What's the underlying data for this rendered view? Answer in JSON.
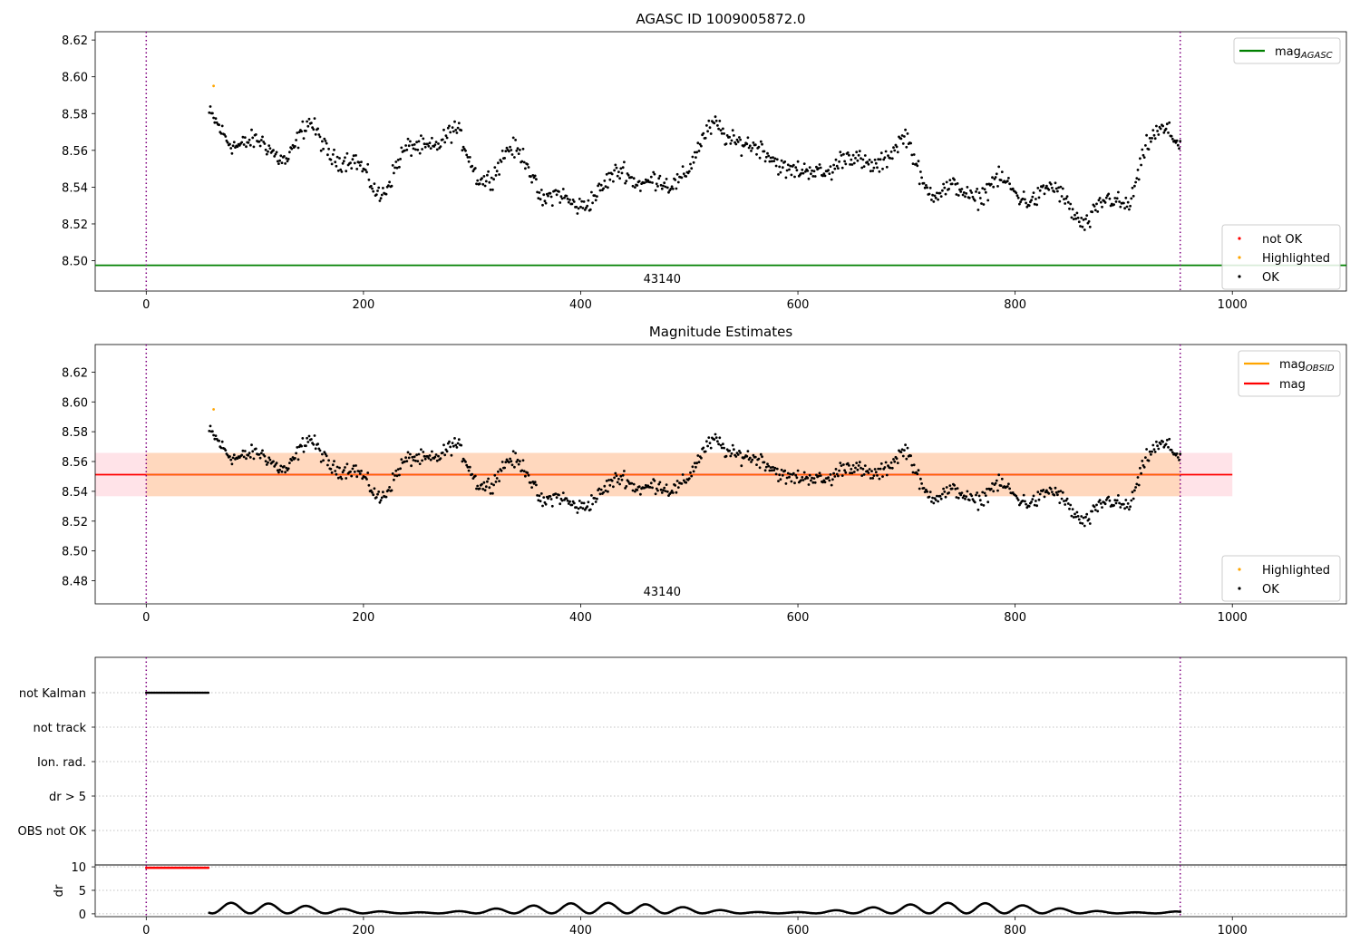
{
  "chart_data": [
    {
      "type": "scatter",
      "title": "AGASC ID 1009005872.0",
      "xlim": [
        -47,
        1105
      ],
      "ylim": [
        8.4835,
        8.6245
      ],
      "xticks": [
        0,
        200,
        400,
        600,
        800,
        1000
      ],
      "yticks": [
        "8.50",
        "8.52",
        "8.54",
        "8.56",
        "8.58",
        "8.60",
        "8.62"
      ],
      "vlines": [
        0,
        952
      ],
      "annotation": {
        "text": "43140",
        "x": 475
      },
      "hline": {
        "name": "mag_AGASC",
        "y": 8.4975,
        "color": "#008000"
      },
      "legend_lines": [
        {
          "label": "mag",
          "sub": "AGASC",
          "color": "#008000"
        }
      ],
      "legend_points": [
        {
          "label": "not OK",
          "color": "#ff0000"
        },
        {
          "label": "Highlighted",
          "color": "#ffa500"
        },
        {
          "label": "OK",
          "color": "#000000"
        }
      ],
      "series": [
        {
          "name": "OK",
          "color": "#000000",
          "x_range": [
            58,
            952
          ],
          "y_profile": [
            [
              58,
              8.576
            ],
            [
              75,
              8.568
            ],
            [
              100,
              8.562
            ],
            [
              130,
              8.558
            ],
            [
              150,
              8.572
            ],
            [
              170,
              8.56
            ],
            [
              190,
              8.552
            ],
            [
              215,
              8.538
            ],
            [
              235,
              8.555
            ],
            [
              260,
              8.565
            ],
            [
              285,
              8.568
            ],
            [
              305,
              8.548
            ],
            [
              320,
              8.547
            ],
            [
              335,
              8.558
            ],
            [
              350,
              8.558
            ],
            [
              365,
              8.533
            ],
            [
              390,
              8.532
            ],
            [
              420,
              8.536
            ],
            [
              440,
              8.552
            ],
            [
              460,
              8.541
            ],
            [
              480,
              8.54
            ],
            [
              500,
              8.553
            ],
            [
              525,
              8.573
            ],
            [
              545,
              8.567
            ],
            [
              560,
              8.558
            ],
            [
              580,
              8.557
            ],
            [
              605,
              8.545
            ],
            [
              620,
              8.548
            ],
            [
              640,
              8.557
            ],
            [
              660,
              8.55
            ],
            [
              680,
              8.558
            ],
            [
              700,
              8.564
            ],
            [
              715,
              8.543
            ],
            [
              740,
              8.537
            ],
            [
              760,
              8.535
            ],
            [
              780,
              8.544
            ],
            [
              800,
              8.535
            ],
            [
              830,
              8.538
            ],
            [
              850,
              8.53
            ],
            [
              865,
              8.522
            ],
            [
              885,
              8.53
            ],
            [
              905,
              8.534
            ],
            [
              920,
              8.56
            ],
            [
              940,
              8.571
            ],
            [
              952,
              8.568
            ]
          ],
          "noise": 0.0075
        },
        {
          "name": "Highlighted",
          "color": "#ffa500",
          "points": [
            [
              62,
              8.595
            ]
          ]
        }
      ]
    },
    {
      "type": "scatter",
      "title": "Magnitude Estimates",
      "xlim": [
        -47,
        1105
      ],
      "ylim": [
        8.4645,
        8.6385
      ],
      "xticks": [
        0,
        200,
        400,
        600,
        800,
        1000
      ],
      "yticks": [
        "8.48",
        "8.50",
        "8.52",
        "8.54",
        "8.56",
        "8.58",
        "8.60",
        "8.62"
      ],
      "vlines": [
        0,
        952
      ],
      "annotation": {
        "text": "43140",
        "x": 475
      },
      "band_outer": {
        "x": [
          -47,
          1000
        ],
        "y": [
          8.5367,
          8.5658
        ],
        "color": "#ffc0cb"
      },
      "band_inner": {
        "x": [
          0,
          952
        ],
        "y": [
          8.5367,
          8.5658
        ],
        "color": "#ffa500"
      },
      "mag_line": {
        "x": [
          -47,
          1000
        ],
        "y": 8.5512,
        "color": "#ff0000"
      },
      "legend_lines": [
        {
          "label": "mag",
          "sub": "OBSID",
          "color": "#ffa500"
        },
        {
          "label": "mag",
          "sub": "",
          "color": "#ff0000"
        }
      ],
      "legend_points": [
        {
          "label": "Highlighted",
          "color": "#ffa500"
        },
        {
          "label": "OK",
          "color": "#000000"
        }
      ],
      "series": [
        {
          "name": "OK",
          "color": "#000000",
          "same_as_panel": 0
        },
        {
          "name": "Highlighted",
          "color": "#ffa500",
          "points": [
            [
              62,
              8.595
            ]
          ]
        }
      ]
    },
    {
      "type": "scatter",
      "title": "",
      "xlim": [
        -47,
        1105
      ],
      "vlines": [
        0,
        952
      ],
      "categories": [
        "not Kalman",
        "not track",
        "Ion. rad.",
        "dr > 5",
        "OBS not OK"
      ],
      "flag_series": [
        {
          "category": "not Kalman",
          "x_range": [
            0,
            58
          ],
          "color": "#000000"
        }
      ]
    },
    {
      "type": "scatter",
      "title": "",
      "ylabel": "dr",
      "xlim": [
        -47,
        1105
      ],
      "ylim": [
        -0.6,
        10.4
      ],
      "xticks": [
        0,
        200,
        400,
        600,
        800,
        1000
      ],
      "yticks": [
        "0",
        "5",
        "10"
      ],
      "vlines": [
        0,
        952
      ],
      "series": [
        {
          "name": "dr",
          "color": "#000000",
          "x_range": [
            58,
            952
          ],
          "y_range": [
            0.1,
            2.6
          ]
        },
        {
          "name": "dr not OK",
          "color": "#ff0000",
          "x_range": [
            0,
            58
          ],
          "y": 9.8
        }
      ]
    }
  ]
}
